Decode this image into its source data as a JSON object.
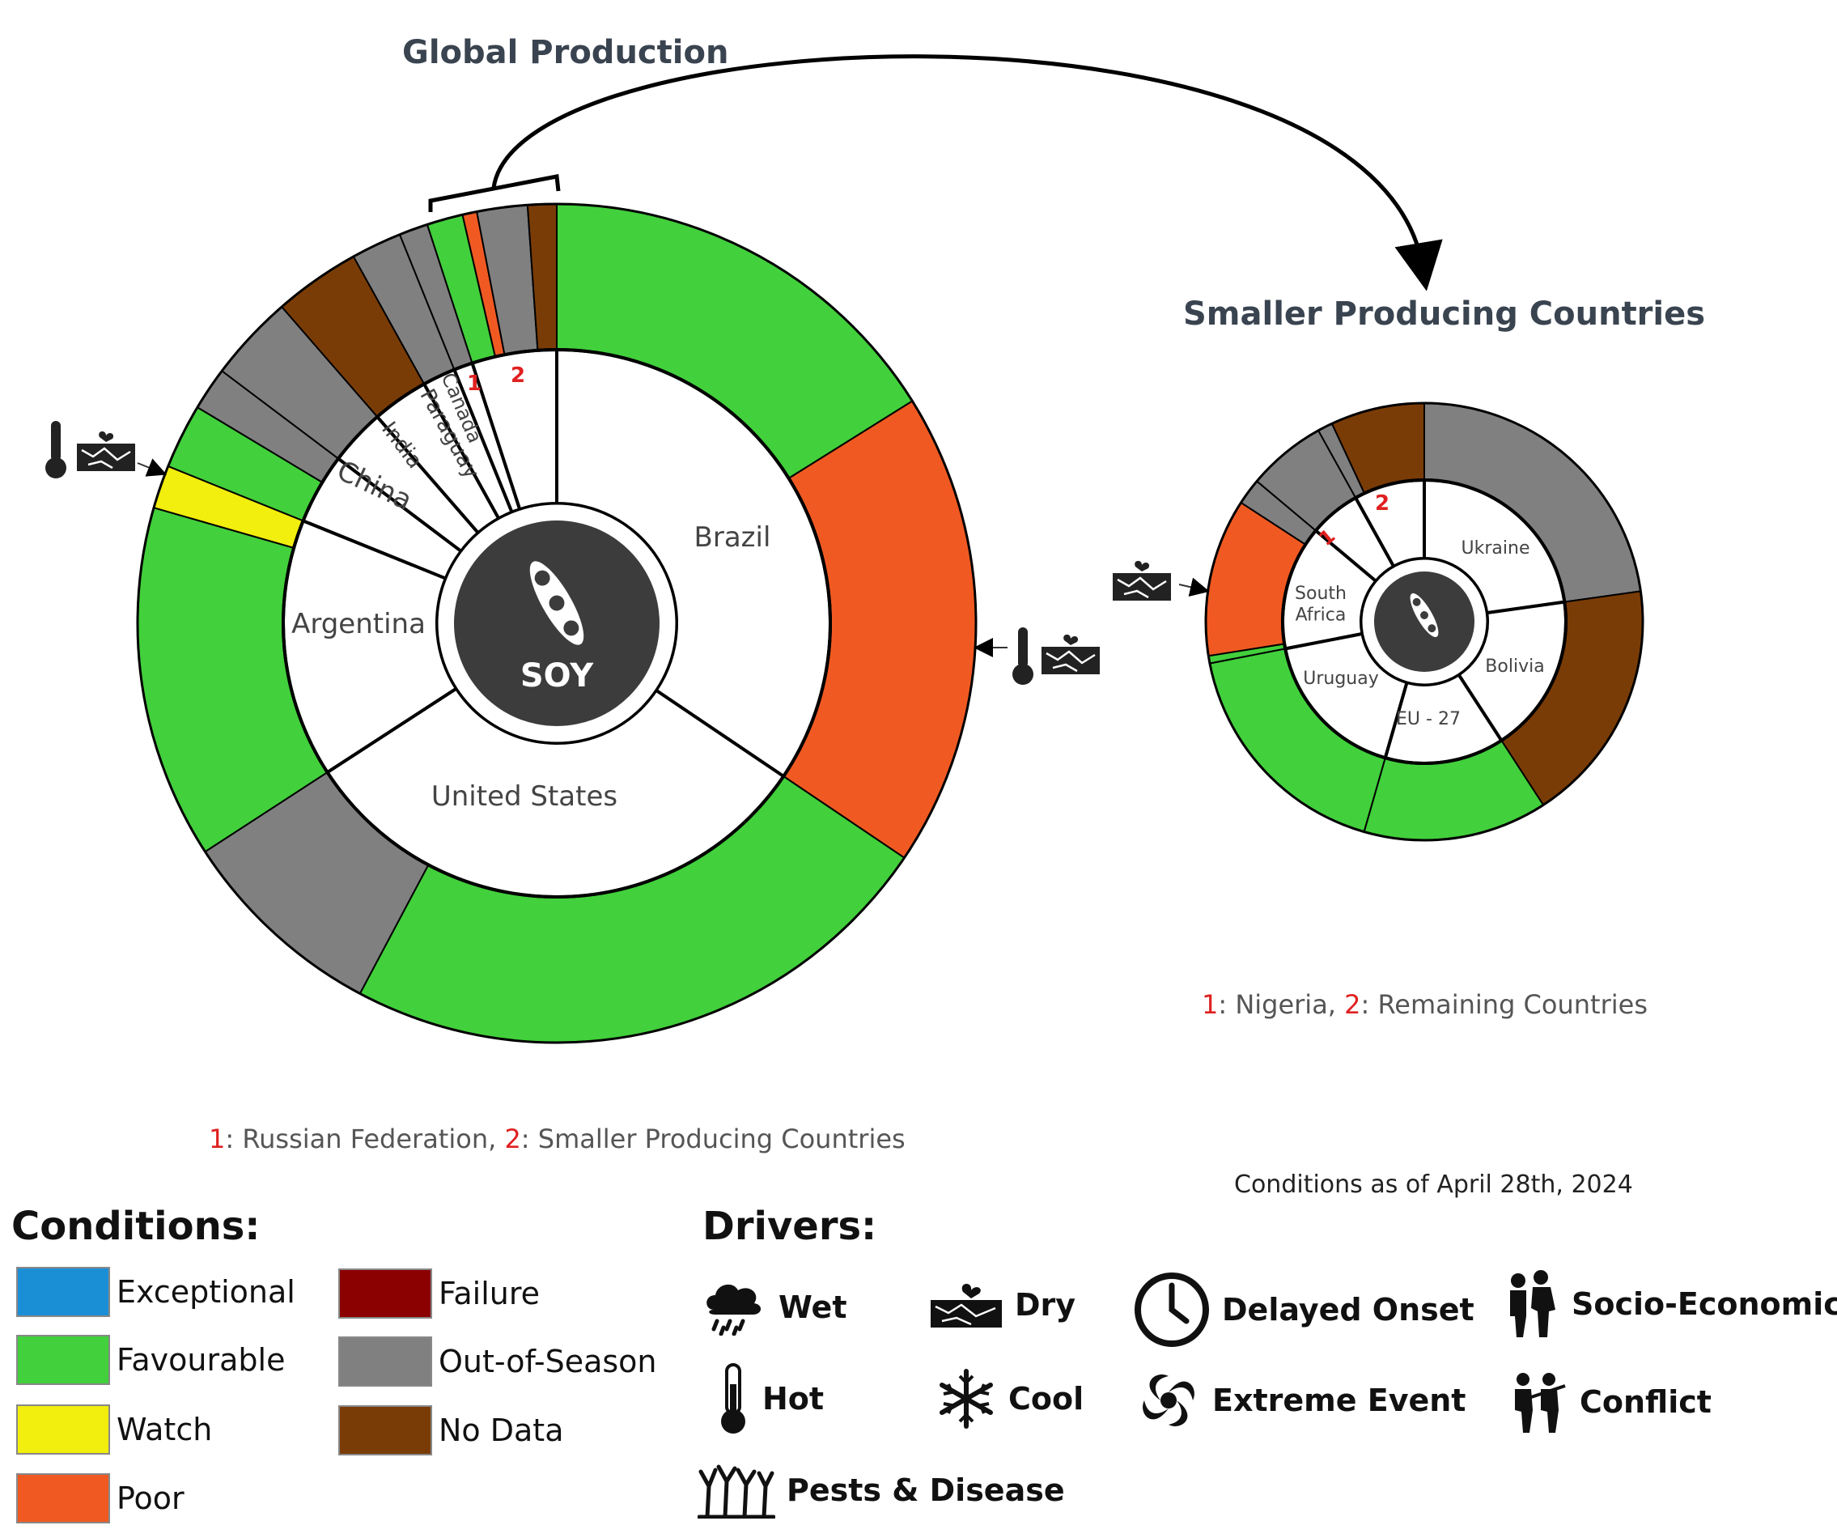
{
  "titles": {
    "global": "Global Production",
    "smaller": "Smaller Producing Countries"
  },
  "center_label": "SOY",
  "footnotes": {
    "smaller_n1": "1",
    "smaller_t1": ": Nigeria, ",
    "smaller_n2": "2",
    "smaller_t2": ": Remaining Countries",
    "global_n1": "1",
    "global_t1": ": Russian Federation, ",
    "global_n2": "2",
    "global_t2": ": Smaller Producing Countries",
    "date": "Conditions as of April 28th, 2024"
  },
  "colors": {
    "Exceptional": "#1b8fd6",
    "Favourable": "#42d03c",
    "Watch": "#f2ee0d",
    "Poor": "#f05a22",
    "Failure": "#8b0000",
    "Out-of-Season": "#808080",
    "No Data": "#7a3c06"
  },
  "legend": {
    "conditions_title": "Conditions:",
    "conditions": [
      "Exceptional",
      "Favourable",
      "Watch",
      "Poor",
      "Failure",
      "Out-of-Season",
      "No Data"
    ],
    "drivers_title": "Drivers:",
    "drivers": [
      {
        "label": "Wet",
        "icon": "wet-icon"
      },
      {
        "label": "Dry",
        "icon": "dry-icon"
      },
      {
        "label": "Delayed Onset",
        "icon": "delayed-onset-icon"
      },
      {
        "label": "Socio-Economic",
        "icon": "socio-economic-icon"
      },
      {
        "label": "Hot",
        "icon": "hot-icon"
      },
      {
        "label": "Cool",
        "icon": "cool-icon"
      },
      {
        "label": "Extreme Event",
        "icon": "extreme-event-icon"
      },
      {
        "label": "Conflict",
        "icon": "conflict-icon"
      },
      {
        "label": "Pests & Disease",
        "icon": "pests-disease-icon"
      }
    ]
  },
  "chart_data": [
    {
      "type": "donut",
      "title": "Global Production",
      "center": "SOY",
      "countries": [
        {
          "name": "Brazil",
          "start": 0,
          "end": 124,
          "segments": [
            {
              "condition": "Favourable",
              "end": 58
            },
            {
              "condition": "Poor",
              "end": 124
            }
          ],
          "drivers": [
            "hot-icon",
            "dry-icon"
          ]
        },
        {
          "name": "United States",
          "start": 124,
          "end": 237,
          "segments": [
            {
              "condition": "Favourable",
              "end": 208
            },
            {
              "condition": "Out-of-Season",
              "end": 237
            }
          ]
        },
        {
          "name": "Argentina",
          "start": 237,
          "end": 292,
          "segments": [
            {
              "condition": "Favourable",
              "end": 286
            },
            {
              "condition": "Watch",
              "end": 292
            }
          ],
          "drivers": [
            "hot-icon",
            "dry-icon"
          ]
        },
        {
          "name": "China",
          "start": 292,
          "end": 307,
          "segments": [
            {
              "condition": "Favourable",
              "end": 301
            },
            {
              "condition": "Out-of-Season",
              "end": 307
            }
          ]
        },
        {
          "name": "India",
          "start": 307,
          "end": 319,
          "segments": [
            {
              "condition": "Out-of-Season",
              "end": 319
            }
          ]
        },
        {
          "name": "Paraguay",
          "start": 319,
          "end": 331,
          "segments": [
            {
              "condition": "No Data",
              "end": 331
            }
          ]
        },
        {
          "name": "Canada",
          "start": 331,
          "end": 338,
          "segments": [
            {
              "condition": "Out-of-Season",
              "end": 338
            }
          ]
        },
        {
          "name": "1",
          "start": 338,
          "end": 342,
          "segments": [
            {
              "condition": "Out-of-Season",
              "end": 342
            }
          ]
        },
        {
          "name": "2",
          "start": 342,
          "end": 360,
          "segments": [
            {
              "condition": "Favourable",
              "end": 347
            },
            {
              "condition": "Poor",
              "end": 349
            },
            {
              "condition": "Out-of-Season",
              "end": 356
            },
            {
              "condition": "No Data",
              "end": 360
            }
          ]
        }
      ]
    },
    {
      "type": "donut",
      "title": "Smaller Producing Countries",
      "countries": [
        {
          "name": "Ukraine",
          "start": 0,
          "end": 82,
          "segments": [
            {
              "condition": "Out-of-Season",
              "end": 82
            }
          ]
        },
        {
          "name": "Bolivia",
          "start": 82,
          "end": 147,
          "segments": [
            {
              "condition": "No Data",
              "end": 147
            }
          ]
        },
        {
          "name": "EU - 27",
          "start": 147,
          "end": 196,
          "segments": [
            {
              "condition": "Favourable",
              "end": 196
            }
          ]
        },
        {
          "name": "Uruguay",
          "start": 196,
          "end": 259,
          "segments": [
            {
              "condition": "Favourable",
              "end": 259
            }
          ]
        },
        {
          "name": "South Africa",
          "start": 259,
          "end": 310,
          "segments": [
            {
              "condition": "Favourable",
              "end": 261
            },
            {
              "condition": "Poor",
              "end": 303
            },
            {
              "condition": "Out-of-Season",
              "end": 310
            }
          ],
          "drivers": [
            "dry-icon"
          ]
        },
        {
          "name": "1",
          "start": 310,
          "end": 331,
          "segments": [
            {
              "condition": "Out-of-Season",
              "end": 331
            }
          ]
        },
        {
          "name": "2",
          "start": 331,
          "end": 360,
          "segments": [
            {
              "condition": "Out-of-Season",
              "end": 335
            },
            {
              "condition": "No Data",
              "end": 360
            }
          ]
        }
      ]
    }
  ]
}
